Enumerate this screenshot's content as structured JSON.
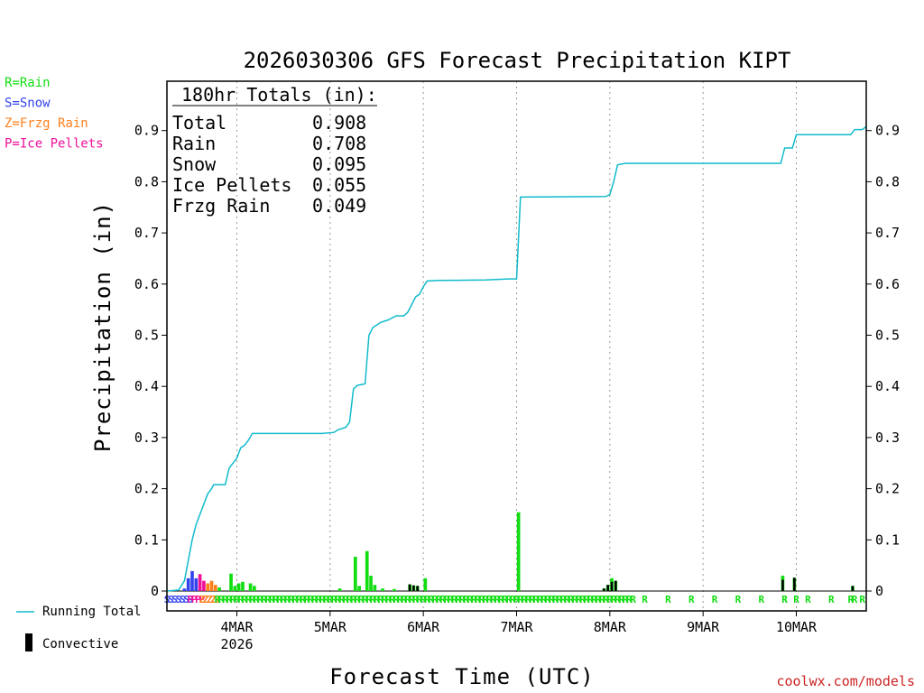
{
  "chart_data": {
    "type": "bar",
    "title": "2026030306 GFS Forecast Precipitation KIPT",
    "xlabel": "Forecast Time (UTC)",
    "ylabel": "Precipitation (in)",
    "ylim": [
      0,
      0.98
    ],
    "yticks": [
      0,
      0.1,
      0.2,
      0.3,
      0.4,
      0.5,
      0.6,
      0.7,
      0.8,
      0.9
    ],
    "ytick_labels": [
      "0",
      "0.1",
      "0.2",
      "0.3",
      "0.4",
      "0.5",
      "0.6",
      "0.7",
      "0.8",
      "0.9"
    ],
    "xlim_hours": [
      0,
      180
    ],
    "x_unit": "forecast hour from 2026-03-03 06Z",
    "x_ticks": [
      {
        "hour": 18,
        "label": "4MAR",
        "sublabel": "2026"
      },
      {
        "hour": 42,
        "label": "5MAR",
        "sublabel": ""
      },
      {
        "hour": 66,
        "label": "6MAR",
        "sublabel": ""
      },
      {
        "hour": 90,
        "label": "7MAR",
        "sublabel": ""
      },
      {
        "hour": 114,
        "label": "8MAR",
        "sublabel": ""
      },
      {
        "hour": 138,
        "label": "9MAR",
        "sublabel": ""
      },
      {
        "hour": 162,
        "label": "10MAR",
        "sublabel": ""
      }
    ],
    "type_legend": [
      {
        "label": "R=Rain",
        "color": "#11dd11"
      },
      {
        "label": "S=Snow",
        "color": "#3344ee"
      },
      {
        "label": "Z=Frzg Rain",
        "color": "#ff7f1a"
      },
      {
        "label": "P=Ice Pellets",
        "color": "#ee1199"
      }
    ],
    "series_legend": [
      {
        "label": "Running Total",
        "color": "#11bbcc"
      },
      {
        "label": "Convective",
        "color": "#000000"
      }
    ],
    "totals": {
      "heading": "180hr Totals (in):",
      "rows": [
        {
          "label": "Total",
          "value": "0.908"
        },
        {
          "label": "Rain",
          "value": "0.708"
        },
        {
          "label": "Snow",
          "value": "0.095"
        },
        {
          "label": "Ice Pellets",
          "value": "0.055"
        },
        {
          "label": "Frzg Rain",
          "value": "0.049"
        }
      ]
    },
    "running_total": [
      [
        0,
        0
      ],
      [
        3,
        0.002
      ],
      [
        4.5,
        0.02
      ],
      [
        5.5,
        0.06
      ],
      [
        6.5,
        0.1
      ],
      [
        7.5,
        0.13
      ],
      [
        8.5,
        0.15
      ],
      [
        9.5,
        0.17
      ],
      [
        10.5,
        0.19
      ],
      [
        11.5,
        0.2
      ],
      [
        12,
        0.208
      ],
      [
        15,
        0.208
      ],
      [
        16,
        0.24
      ],
      [
        17,
        0.25
      ],
      [
        18,
        0.26
      ],
      [
        19,
        0.28
      ],
      [
        20,
        0.285
      ],
      [
        21,
        0.295
      ],
      [
        22,
        0.308
      ],
      [
        40,
        0.308
      ],
      [
        43,
        0.31
      ],
      [
        44,
        0.315
      ],
      [
        46,
        0.32
      ],
      [
        47,
        0.33
      ],
      [
        48,
        0.395
      ],
      [
        49,
        0.402
      ],
      [
        51,
        0.405
      ],
      [
        52,
        0.5
      ],
      [
        53,
        0.515
      ],
      [
        54,
        0.52
      ],
      [
        55,
        0.525
      ],
      [
        57,
        0.53
      ],
      [
        59,
        0.538
      ],
      [
        61,
        0.538
      ],
      [
        62,
        0.545
      ],
      [
        63,
        0.56
      ],
      [
        64,
        0.575
      ],
      [
        65,
        0.58
      ],
      [
        66,
        0.595
      ],
      [
        67,
        0.606
      ],
      [
        70,
        0.607
      ],
      [
        82,
        0.608
      ],
      [
        88,
        0.61
      ],
      [
        90,
        0.61
      ],
      [
        91,
        0.77
      ],
      [
        113,
        0.771
      ],
      [
        114,
        0.775
      ],
      [
        115,
        0.8
      ],
      [
        116,
        0.833
      ],
      [
        118,
        0.836
      ],
      [
        158,
        0.836
      ],
      [
        159,
        0.866
      ],
      [
        161,
        0.866
      ],
      [
        162,
        0.892
      ],
      [
        176,
        0.892
      ],
      [
        177,
        0.902
      ],
      [
        179,
        0.902
      ],
      [
        180,
        0.908
      ]
    ],
    "bars": [
      {
        "hour": 4.5,
        "value": 0.005,
        "ptype": "S"
      },
      {
        "hour": 5.5,
        "value": 0.025,
        "ptype": "S"
      },
      {
        "hour": 6.5,
        "value": 0.039,
        "ptype": "S"
      },
      {
        "hour": 7.5,
        "value": 0.025,
        "ptype": "S"
      },
      {
        "hour": 8.5,
        "value": 0.033,
        "ptype": "P"
      },
      {
        "hour": 9.5,
        "value": 0.02,
        "ptype": "P"
      },
      {
        "hour": 10.5,
        "value": 0.015,
        "ptype": "Z"
      },
      {
        "hour": 11.5,
        "value": 0.02,
        "ptype": "Z"
      },
      {
        "hour": 12.5,
        "value": 0.012,
        "ptype": "Z"
      },
      {
        "hour": 13.5,
        "value": 0.007,
        "ptype": "R"
      },
      {
        "hour": 16.5,
        "value": 0.034,
        "ptype": "R"
      },
      {
        "hour": 17.5,
        "value": 0.01,
        "ptype": "R"
      },
      {
        "hour": 18.5,
        "value": 0.015,
        "ptype": "R"
      },
      {
        "hour": 19.5,
        "value": 0.018,
        "ptype": "R"
      },
      {
        "hour": 21.5,
        "value": 0.015,
        "ptype": "R"
      },
      {
        "hour": 22.5,
        "value": 0.01,
        "ptype": "R"
      },
      {
        "hour": 44.5,
        "value": 0.005,
        "ptype": "R"
      },
      {
        "hour": 48.5,
        "value": 0.067,
        "ptype": "R"
      },
      {
        "hour": 49.5,
        "value": 0.01,
        "ptype": "R"
      },
      {
        "hour": 51.5,
        "value": 0.078,
        "ptype": "R"
      },
      {
        "hour": 52.5,
        "value": 0.03,
        "ptype": "R"
      },
      {
        "hour": 53.5,
        "value": 0.012,
        "ptype": "R"
      },
      {
        "hour": 55.5,
        "value": 0.005,
        "ptype": "R"
      },
      {
        "hour": 58.5,
        "value": 0.004,
        "ptype": "R"
      },
      {
        "hour": 62.5,
        "value": 0.013,
        "ptype": "R",
        "convective": 0.013
      },
      {
        "hour": 63.5,
        "value": 0.011,
        "ptype": "R",
        "convective": 0.011
      },
      {
        "hour": 64.5,
        "value": 0.01,
        "ptype": "R",
        "convective": 0.01
      },
      {
        "hour": 66.5,
        "value": 0.025,
        "ptype": "R"
      },
      {
        "hour": 90.5,
        "value": 0.154,
        "ptype": "R"
      },
      {
        "hour": 112.5,
        "value": 0.005,
        "ptype": "R",
        "convective": 0.005
      },
      {
        "hour": 113.5,
        "value": 0.012,
        "ptype": "R",
        "convective": 0.012
      },
      {
        "hour": 114.5,
        "value": 0.025,
        "ptype": "R",
        "convective": 0.018
      },
      {
        "hour": 115.5,
        "value": 0.02,
        "ptype": "R",
        "convective": 0.02
      },
      {
        "hour": 158.5,
        "value": 0.03,
        "ptype": "R",
        "convective": 0.022
      },
      {
        "hour": 161.5,
        "value": 0.026,
        "ptype": "R",
        "convective": 0.026
      },
      {
        "hour": 176.5,
        "value": 0.01,
        "ptype": "R",
        "convective": 0.01
      }
    ],
    "type_markers": [
      {
        "from": 0,
        "to": 6,
        "step": 1,
        "ptype": "S"
      },
      {
        "from": 6,
        "to": 9,
        "step": 1,
        "ptype": "P"
      },
      {
        "from": 9,
        "to": 13,
        "step": 1,
        "ptype": "Z"
      },
      {
        "from": 13,
        "to": 120,
        "step": 1,
        "ptype": "R"
      },
      {
        "from": 123,
        "to": 180,
        "step": 6,
        "ptype": "R"
      },
      {
        "from": 159,
        "to": 162,
        "step": 3,
        "ptype": "R"
      },
      {
        "from": 176,
        "to": 180,
        "step": 3,
        "ptype": "R"
      }
    ]
  },
  "footer": {
    "credit": "coolwx.com/models"
  }
}
